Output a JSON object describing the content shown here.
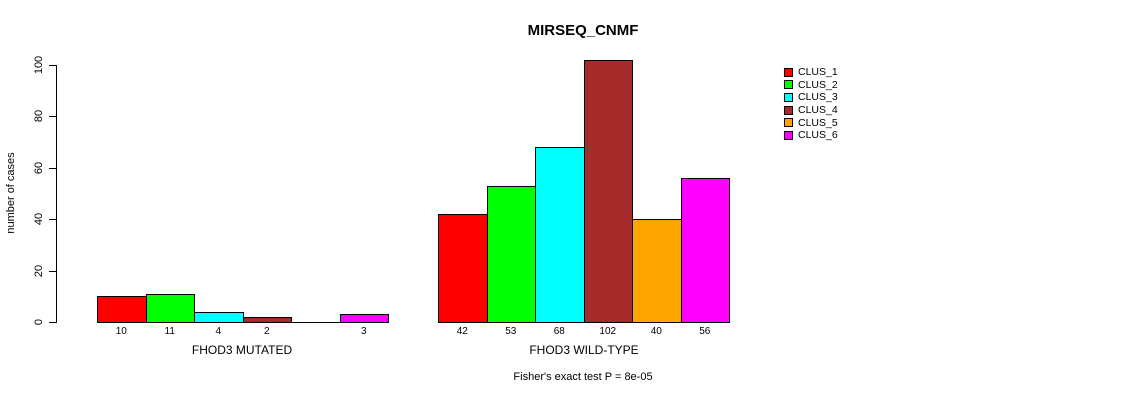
{
  "chart_data": {
    "type": "bar",
    "title": "MIRSEQ_CNMF",
    "ylabel": "number of cases",
    "ylim": [
      0,
      100
    ],
    "yticks": [
      0,
      20,
      40,
      60,
      80,
      100
    ],
    "grid": false,
    "legend_position": "right",
    "subtitle": "Fisher's exact test P = 8e-05",
    "series_colors": [
      "#FF0000",
      "#00FF00",
      "#00FFFF",
      "#A52A2A",
      "#FFA500",
      "#FF00FF"
    ],
    "legend": [
      {
        "name": "CLUS_1",
        "color": "#FF0000"
      },
      {
        "name": "CLUS_2",
        "color": "#00FF00"
      },
      {
        "name": "CLUS_3",
        "color": "#00FFFF"
      },
      {
        "name": "CLUS_4",
        "color": "#A52A2A"
      },
      {
        "name": "CLUS_5",
        "color": "#FFA500"
      },
      {
        "name": "CLUS_6",
        "color": "#FF00FF"
      }
    ],
    "groups": [
      {
        "label": "FHOD3 MUTATED",
        "values": [
          10,
          11,
          4,
          2,
          0,
          3
        ],
        "value_labels": [
          "10",
          "11",
          "4",
          "2",
          "",
          "3"
        ]
      },
      {
        "label": "FHOD3 WILD-TYPE",
        "values": [
          42,
          53,
          68,
          102,
          40,
          56
        ],
        "value_labels": [
          "42",
          "53",
          "68",
          "102",
          "40",
          "56"
        ]
      }
    ]
  }
}
